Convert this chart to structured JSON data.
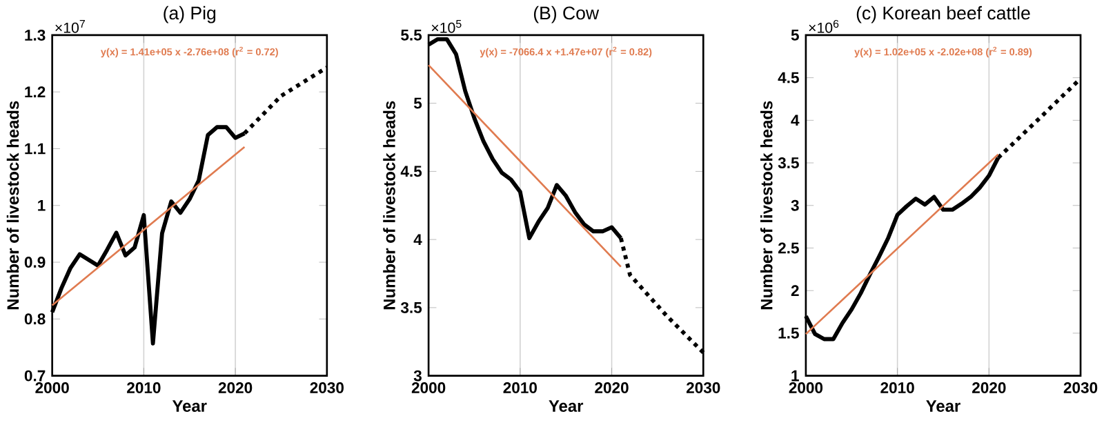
{
  "chart_data": [
    {
      "type": "line",
      "title": "(a) Pig",
      "xlabel": "Year",
      "ylabel": "Number of livestock heads",
      "annotations": [
        "y(x) = 1.41e+05 x -2.76e+08 (r$^{2}$ = 0.72)",
        "×10$^{7}$"
      ],
      "x": [
        2000,
        2001,
        2002,
        2003,
        2004,
        2005,
        2006,
        2007,
        2008,
        2009,
        2010,
        2011,
        2012,
        2013,
        2014,
        2015,
        2016,
        2017,
        2018,
        2019,
        2020,
        2021
      ],
      "series": [
        {
          "color": "#000000",
          "values": [
            0.812,
            0.854,
            0.89,
            0.914,
            0.904,
            0.894,
            0.922,
            0.952,
            0.912,
            0.926,
            0.983,
            0.757,
            0.951,
            1.007,
            0.987,
            1.011,
            1.044,
            1.124,
            1.138,
            1.138,
            1.119,
            1.127
          ]
        },
        {
          "color": "#000000",
          "line_style": "dotted",
          "x": [
            2021,
            2025,
            2030
          ],
          "values": [
            1.127,
            1.193,
            1.243
          ]
        },
        {
          "color": "#e07b50",
          "x": [
            2000,
            2021
          ],
          "values": [
            0.824,
            1.103
          ]
        }
      ],
      "xlim": [
        2000,
        2030
      ],
      "xticks": [
        2000,
        2010,
        2020,
        2030
      ],
      "ylim": [
        0.7,
        1.3
      ],
      "yticks": [
        0.7,
        0.8,
        0.9,
        1,
        1.1,
        1.2,
        1.3
      ],
      "grid": "x",
      "marker": "none"
    },
    {
      "type": "line",
      "title": "(B) Cow",
      "xlabel": "Year",
      "ylabel": "Number of livestock heads",
      "annotations": [
        "y(x) = -7066.4 x +1.47e+07 (r$^{2}$ = 0.82)",
        "×10$^{5}$"
      ],
      "x": [
        2000,
        2001,
        2002,
        2003,
        2004,
        2005,
        2006,
        2007,
        2008,
        2009,
        2010,
        2011,
        2012,
        2013,
        2014,
        2015,
        2016,
        2017,
        2018,
        2019,
        2020,
        2021
      ],
      "series": [
        {
          "color": "#000000",
          "values": [
            5.43,
            5.47,
            5.47,
            5.36,
            5.09,
            4.89,
            4.72,
            4.59,
            4.49,
            4.44,
            4.35,
            4.01,
            4.13,
            4.23,
            4.4,
            4.32,
            4.2,
            4.11,
            4.06,
            4.06,
            4.09,
            4.01
          ]
        },
        {
          "color": "#000000",
          "line_style": "dotted",
          "x": [
            2021,
            2022,
            2026,
            2030
          ],
          "values": [
            4.01,
            3.74,
            3.44,
            3.17
          ]
        },
        {
          "color": "#e07b50",
          "x": [
            2000,
            2021
          ],
          "values": [
            5.28,
            3.8
          ]
        }
      ],
      "xlim": [
        2000,
        2030
      ],
      "xticks": [
        2000,
        2010,
        2020,
        2030
      ],
      "ylim": [
        3,
        5.5
      ],
      "yticks": [
        3,
        3.5,
        4,
        4.5,
        5,
        5.5
      ],
      "grid": "x",
      "marker": "none"
    },
    {
      "type": "line",
      "title": "(c) Korean beef cattle",
      "xlabel": "Year",
      "ylabel": "Number of livestock heads",
      "annotations": [
        "y(x) = 1.02e+05 x -2.02e+08 (r$^{2}$ = 0.89)",
        "×10$^{6}$"
      ],
      "x": [
        2000,
        2001,
        2002,
        2003,
        2004,
        2005,
        2006,
        2007,
        2008,
        2009,
        2010,
        2011,
        2012,
        2013,
        2014,
        2015,
        2016,
        2017,
        2018,
        2019,
        2020,
        2021
      ],
      "series": [
        {
          "color": "#000000",
          "values": [
            1.7,
            1.49,
            1.43,
            1.43,
            1.62,
            1.78,
            1.97,
            2.19,
            2.4,
            2.62,
            2.89,
            2.99,
            3.08,
            3.01,
            3.1,
            2.95,
            2.95,
            3.02,
            3.1,
            3.21,
            3.35,
            3.56
          ]
        },
        {
          "color": "#000000",
          "line_style": "dotted",
          "x": [
            2021,
            2025,
            2030
          ],
          "values": [
            3.56,
            3.97,
            4.49
          ]
        },
        {
          "color": "#e07b50",
          "x": [
            2000,
            2021
          ],
          "values": [
            1.49,
            3.6
          ]
        }
      ],
      "xlim": [
        2000,
        2030
      ],
      "xticks": [
        2000,
        2010,
        2020,
        2030
      ],
      "ylim": [
        1,
        5
      ],
      "yticks": [
        1,
        1.5,
        2,
        2.5,
        3,
        3.5,
        4,
        4.5,
        5
      ],
      "grid": "x",
      "marker": "none"
    }
  ]
}
